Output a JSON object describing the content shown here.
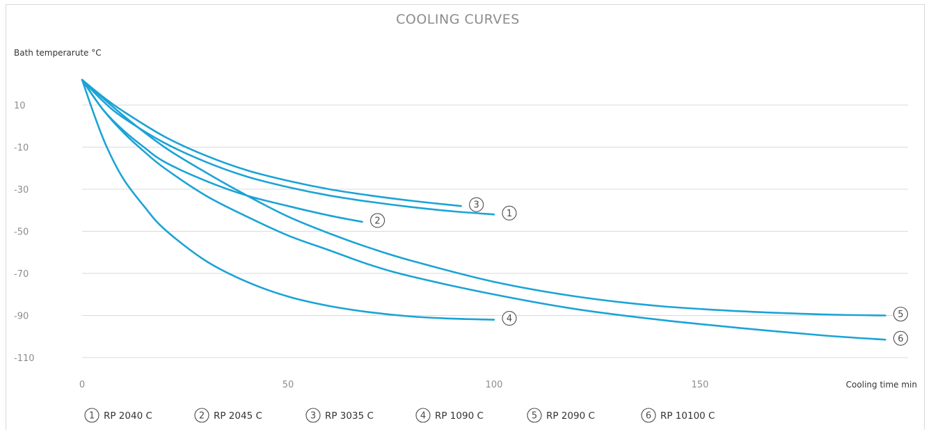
{
  "chart_data": {
    "type": "line",
    "title": "COOLING CURVES",
    "xlabel": "Cooling time min",
    "ylabel": "Bath temperarute °C",
    "xlim": [
      0,
      200
    ],
    "ylim": [
      -118,
      23
    ],
    "x_ticks": [
      "0",
      "50",
      "100",
      "150"
    ],
    "x_tick_values": [
      0,
      50,
      100,
      150
    ],
    "y_ticks": [
      "10",
      "-10",
      "-30",
      "-50",
      "-70",
      "-90",
      "-110"
    ],
    "y_tick_values": [
      10,
      -10,
      -30,
      -50,
      -70,
      -90,
      -110
    ],
    "grid": true,
    "legend_position": "bottom",
    "series": [
      {
        "name": "RP 2040 C",
        "marker": "1",
        "x": [
          0,
          5,
          10,
          20,
          30,
          40,
          50,
          60,
          70,
          80,
          90,
          100
        ],
        "y": [
          22,
          12,
          4,
          -8,
          -17,
          -24,
          -29,
          -33,
          -36,
          -38.5,
          -40.5,
          -42
        ]
      },
      {
        "name": "RP 2045 C",
        "marker": "2",
        "x": [
          0,
          5,
          10,
          15,
          20,
          30,
          40,
          50,
          60,
          68
        ],
        "y": [
          22,
          8,
          -2,
          -10,
          -17,
          -26,
          -33,
          -38,
          -42.5,
          -45.5
        ]
      },
      {
        "name": "RP 3035 C",
        "marker": "3",
        "x": [
          0,
          5,
          10,
          20,
          30,
          40,
          50,
          60,
          70,
          80,
          92
        ],
        "y": [
          22,
          14,
          7,
          -5,
          -14,
          -21,
          -26,
          -30,
          -33,
          -35.5,
          -38
        ]
      },
      {
        "name": "RP 1090 C",
        "marker": "4",
        "x": [
          0,
          3,
          6,
          10,
          15,
          20,
          30,
          40,
          50,
          60,
          70,
          80,
          90,
          100
        ],
        "y": [
          22,
          5,
          -10,
          -25,
          -38,
          -49,
          -64,
          -74,
          -81,
          -85.5,
          -88.5,
          -90.5,
          -91.5,
          -92
        ]
      },
      {
        "name": "RP 2090 C",
        "marker": "5",
        "x": [
          0,
          10,
          20,
          30,
          40,
          50,
          60,
          70,
          80,
          100,
          120,
          140,
          160,
          180,
          195
        ],
        "y": [
          22,
          5,
          -10,
          -22,
          -33,
          -43,
          -51,
          -58,
          -64,
          -74,
          -81,
          -85.5,
          -88,
          -89.5,
          -90
        ]
      },
      {
        "name": "RP 10100 C",
        "marker": "6",
        "x": [
          0,
          5,
          10,
          15,
          20,
          30,
          40,
          50,
          60,
          70,
          80,
          100,
          120,
          140,
          160,
          180,
          195
        ],
        "y": [
          22,
          8,
          -3,
          -12,
          -20,
          -33,
          -43,
          -52,
          -59,
          -66,
          -71.5,
          -80,
          -87,
          -92,
          -96,
          -99.5,
          -101.5
        ]
      }
    ]
  }
}
